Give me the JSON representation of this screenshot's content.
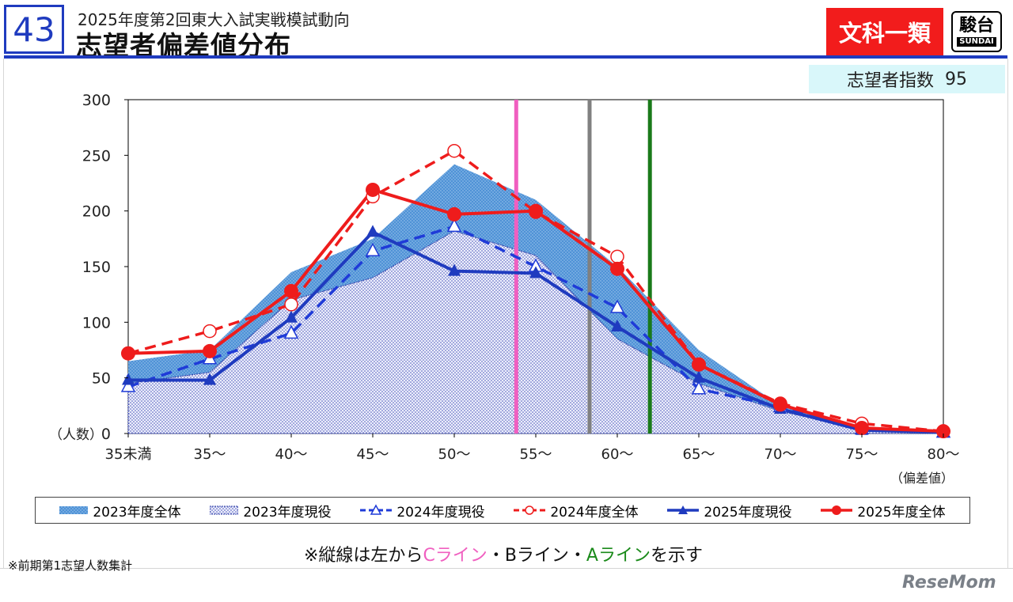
{
  "header": {
    "page_number": "43",
    "subtitle": "2025年度第2回東大入試実戦模試動向",
    "title": "志望者偏差値分布",
    "category": "文科一類",
    "logo_main": "駿台",
    "logo_sub": "SUNDAI"
  },
  "index": {
    "label": "志望者指数",
    "value": "95"
  },
  "note": {
    "prefix": "※縦線は左から",
    "c_line": "Cライン",
    "sep1": "・Bライン・",
    "a_line": "Aライン",
    "suffix": "を示す"
  },
  "footnote": "※前期第1志望人数集計",
  "watermark": "ReseMom",
  "chart_data": {
    "type": "line",
    "categories": [
      "35未満",
      "35～",
      "40～",
      "45～",
      "50～",
      "55～",
      "60～",
      "65～",
      "70～",
      "75～",
      "80～"
    ],
    "ylim": [
      0,
      300
    ],
    "yticks": [
      0,
      50,
      100,
      150,
      200,
      250,
      300
    ],
    "ylabel": "（人数）",
    "xlabel": "（偏差値）",
    "vertical_lines": [
      {
        "name": "Cライン",
        "x": 53.8,
        "color": "#f05fc0"
      },
      {
        "name": "Bライン",
        "x": 58.3,
        "color": "#808080"
      },
      {
        "name": "Aライン",
        "x": 62.0,
        "color": "#1a7a1a"
      }
    ],
    "series": [
      {
        "name": "2023年度全体",
        "style": "area-dotted-blue",
        "color": "#4a8fd8",
        "values": [
          65,
          75,
          145,
          175,
          242,
          210,
          150,
          75,
          25,
          5,
          2
        ]
      },
      {
        "name": "2023年度現役",
        "style": "area-dotted-lavender",
        "color": "#2f3fa8",
        "values": [
          45,
          55,
          120,
          140,
          182,
          160,
          85,
          45,
          20,
          4,
          1
        ]
      },
      {
        "name": "2024年度現役",
        "style": "dashed-open-triangle",
        "color": "#1f3bd8",
        "values": [
          42,
          67,
          90,
          164,
          186,
          150,
          113,
          40,
          24,
          4,
          1
        ]
      },
      {
        "name": "2024年度全体",
        "style": "dashed-open-circle",
        "color": "#ee1c1c",
        "values": [
          72,
          92,
          116,
          213,
          254,
          199,
          159,
          62,
          27,
          9,
          2
        ]
      },
      {
        "name": "2025年度現役",
        "style": "solid-filled-triangle",
        "color": "#1f3bbf",
        "values": [
          48,
          48,
          104,
          181,
          146,
          144,
          96,
          50,
          22,
          3,
          1
        ]
      },
      {
        "name": "2025年度全体",
        "style": "solid-filled-circle",
        "color": "#ee1c1c",
        "values": [
          72,
          74,
          128,
          219,
          197,
          200,
          148,
          62,
          26,
          5,
          2
        ]
      }
    ]
  }
}
